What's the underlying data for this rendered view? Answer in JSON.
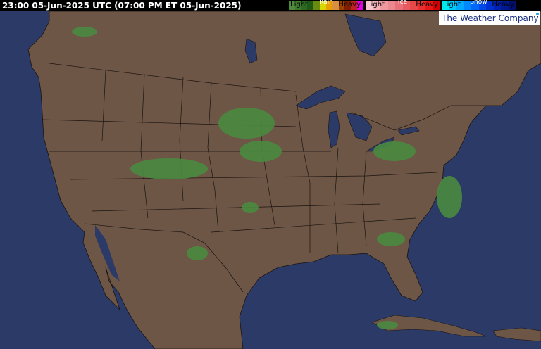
{
  "header": {
    "title": "23:00 05-Jun-2025 UTC  (07:00 PM ET 05-Jun-2025)"
  },
  "legend": {
    "rain": {
      "label": "Rain",
      "light": "Light",
      "heavy": "Heavy",
      "colors": [
        "#4f8a3c",
        "#3e7a2e",
        "#2d6a22",
        "#1e5a16",
        "#6a8a10",
        "#d8d800",
        "#e8a000",
        "#d89040",
        "#9a4000",
        "#802000",
        "#c02020",
        "#e000e0"
      ]
    },
    "ice": {
      "label": "Ice",
      "light": "Light",
      "heavy": "Heavy",
      "colors": [
        "#f8c8d0",
        "#f4b0b8",
        "#f09aa0",
        "#ec8890",
        "#e87078",
        "#e85a60",
        "#e84848",
        "#e83030",
        "#e81818",
        "#d80000"
      ]
    },
    "snow": {
      "label": "Snow",
      "light": "Light",
      "heavy": "Heavy",
      "colors": [
        "#00e8f0",
        "#00c8f8",
        "#00a8ff",
        "#0088ff",
        "#0068f8",
        "#0048e8",
        "#0030d0",
        "#0020b0",
        "#001890",
        "#001070"
      ]
    }
  },
  "logo": {
    "text": "The Weather Company"
  },
  "map": {
    "ocean_color": "#2b3a66",
    "land_color": "#6e5646",
    "border_color": "#1a1410",
    "precip_color": "#4a8a40"
  }
}
